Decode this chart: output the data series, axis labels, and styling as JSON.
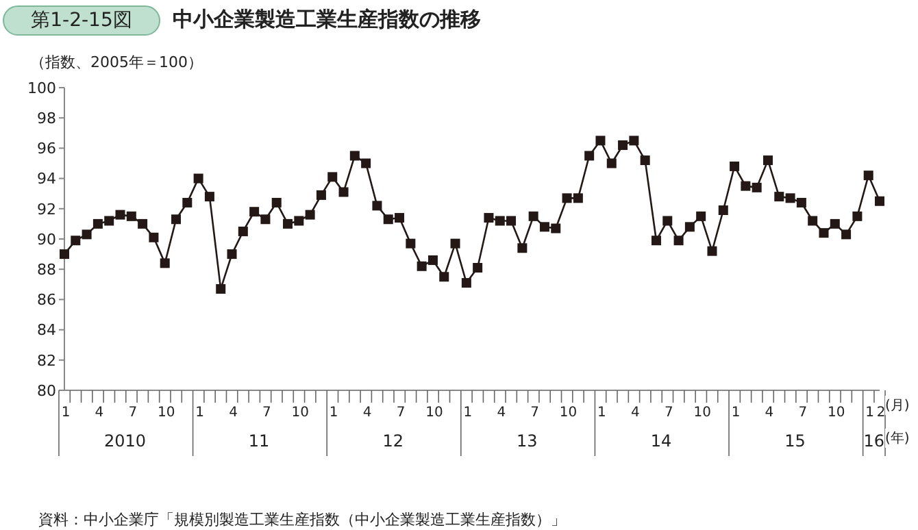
{
  "chart_data": {
    "type": "line",
    "title": "中小企業製造工業生産指数の推移",
    "subtitle": "第1-2-15図",
    "ylabel": "（指数、2005年＝100）",
    "categories": [
      "1",
      null,
      null,
      "4",
      null,
      null,
      "7",
      null,
      null,
      "10",
      null,
      null,
      "1",
      null,
      null,
      "4",
      null,
      null,
      "7",
      null,
      null,
      "10",
      null,
      null,
      "1",
      null,
      null,
      "4",
      null,
      null,
      "7",
      null,
      null,
      "10",
      null,
      null,
      "1",
      null,
      null,
      "4",
      null,
      null,
      "7",
      null,
      null,
      "10",
      null,
      null,
      "1",
      null,
      null,
      "4",
      null,
      null,
      "7",
      null,
      null,
      "10",
      null,
      null,
      "1",
      null,
      null,
      "4",
      null,
      null,
      "7",
      null,
      null,
      "10",
      null,
      null,
      "1",
      "2"
    ],
    "series": [
      {
        "color": "#231815",
        "values": [
          89.0,
          89.9,
          90.3,
          91.0,
          91.2,
          91.6,
          91.5,
          91.0,
          90.1,
          88.4,
          91.3,
          92.4,
          94.0,
          92.8,
          86.7,
          89.0,
          90.5,
          91.8,
          91.3,
          92.4,
          91.0,
          91.2,
          91.6,
          92.9,
          94.1,
          93.1,
          95.5,
          95.0,
          92.2,
          91.3,
          91.4,
          89.7,
          88.2,
          88.6,
          87.5,
          89.7,
          87.1,
          88.1,
          91.4,
          91.2,
          91.2,
          89.4,
          91.5,
          90.8,
          90.7,
          92.7,
          92.7,
          95.5,
          96.5,
          95.0,
          96.2,
          96.5,
          95.2,
          89.9,
          91.2,
          89.9,
          90.8,
          91.5,
          89.2,
          91.9,
          94.8,
          93.5,
          93.4,
          95.2,
          92.8,
          92.7,
          92.4,
          91.2,
          90.4,
          91.0,
          90.3,
          91.5,
          94.2,
          92.5
        ]
      }
    ],
    "ylim": [
      80,
      100
    ],
    "yticks": [
      80,
      82,
      84,
      86,
      88,
      90,
      92,
      94,
      96,
      98,
      100
    ],
    "grid": false,
    "legend": false,
    "marker": "square",
    "line_style": "solid",
    "annotations": [
      "(月)",
      "(年)",
      "2010",
      "11",
      "12",
      "13",
      "14",
      "15",
      "16",
      "資料：中小企業庁「規模別製造工業生産指数（中小企業製造工業生産指数）」"
    ]
  }
}
